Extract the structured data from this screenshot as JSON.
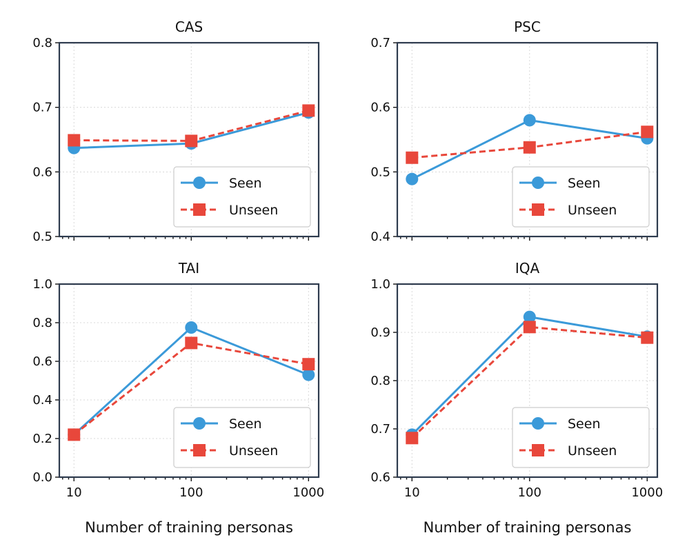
{
  "chart_data": [
    {
      "type": "line",
      "title": "CAS",
      "xlabel": "",
      "xscale": "log",
      "x": [
        10,
        100,
        1000
      ],
      "xticks": [
        10,
        100,
        1000
      ],
      "xtick_labels": [
        "",
        "",
        ""
      ],
      "ylim": [
        0.5,
        0.8
      ],
      "yticks": [
        0.5,
        0.6,
        0.7,
        0.8
      ],
      "ytick_labels": [
        "0.5",
        "0.6",
        "0.7",
        "0.8"
      ],
      "grid": true,
      "legend": "bottom-right",
      "series": [
        {
          "name": "Seen",
          "values": [
            0.637,
            0.644,
            0.692
          ],
          "color": "#3b9ad9",
          "marker": "circle",
          "style": "solid"
        },
        {
          "name": "Unseen",
          "values": [
            0.649,
            0.648,
            0.695
          ],
          "color": "#e8473b",
          "marker": "square",
          "style": "dashed"
        }
      ]
    },
    {
      "type": "line",
      "title": "PSC",
      "xlabel": "",
      "xscale": "log",
      "x": [
        10,
        100,
        1000
      ],
      "xticks": [
        10,
        100,
        1000
      ],
      "xtick_labels": [
        "",
        "",
        ""
      ],
      "ylim": [
        0.4,
        0.7
      ],
      "yticks": [
        0.4,
        0.5,
        0.6,
        0.7
      ],
      "ytick_labels": [
        "0.4",
        "0.5",
        "0.6",
        "0.7"
      ],
      "grid": true,
      "legend": "bottom-right",
      "series": [
        {
          "name": "Seen",
          "values": [
            0.489,
            0.58,
            0.552
          ],
          "color": "#3b9ad9",
          "marker": "circle",
          "style": "solid"
        },
        {
          "name": "Unseen",
          "values": [
            0.522,
            0.538,
            0.562
          ],
          "color": "#e8473b",
          "marker": "square",
          "style": "dashed"
        }
      ]
    },
    {
      "type": "line",
      "title": "TAI",
      "xlabel": "Number of training personas",
      "xscale": "log",
      "x": [
        10,
        100,
        1000
      ],
      "xticks": [
        10,
        100,
        1000
      ],
      "xtick_labels": [
        "10",
        "100",
        "1000"
      ],
      "ylim": [
        0.0,
        1.0
      ],
      "yticks": [
        0.0,
        0.2,
        0.4,
        0.6,
        0.8,
        1.0
      ],
      "ytick_labels": [
        "0.0",
        "0.2",
        "0.4",
        "0.6",
        "0.8",
        "1.0"
      ],
      "grid": true,
      "legend": "bottom-right",
      "series": [
        {
          "name": "Seen",
          "values": [
            0.22,
            0.775,
            0.53
          ],
          "color": "#3b9ad9",
          "marker": "circle",
          "style": "solid"
        },
        {
          "name": "Unseen",
          "values": [
            0.22,
            0.695,
            0.585
          ],
          "color": "#e8473b",
          "marker": "square",
          "style": "dashed"
        }
      ]
    },
    {
      "type": "line",
      "title": "IQA",
      "xlabel": "Number of training personas",
      "xscale": "log",
      "x": [
        10,
        100,
        1000
      ],
      "xticks": [
        10,
        100,
        1000
      ],
      "xtick_labels": [
        "10",
        "100",
        "1000"
      ],
      "ylim": [
        0.6,
        1.0
      ],
      "yticks": [
        0.6,
        0.7,
        0.8,
        0.9,
        1.0
      ],
      "ytick_labels": [
        "0.6",
        "0.7",
        "0.8",
        "0.9",
        "1.0"
      ],
      "grid": true,
      "legend": "bottom-right",
      "series": [
        {
          "name": "Seen",
          "values": [
            0.688,
            0.932,
            0.891
          ],
          "color": "#3b9ad9",
          "marker": "circle",
          "style": "solid"
        },
        {
          "name": "Unseen",
          "values": [
            0.681,
            0.911,
            0.889
          ],
          "color": "#e8473b",
          "marker": "square",
          "style": "dashed"
        }
      ]
    }
  ]
}
